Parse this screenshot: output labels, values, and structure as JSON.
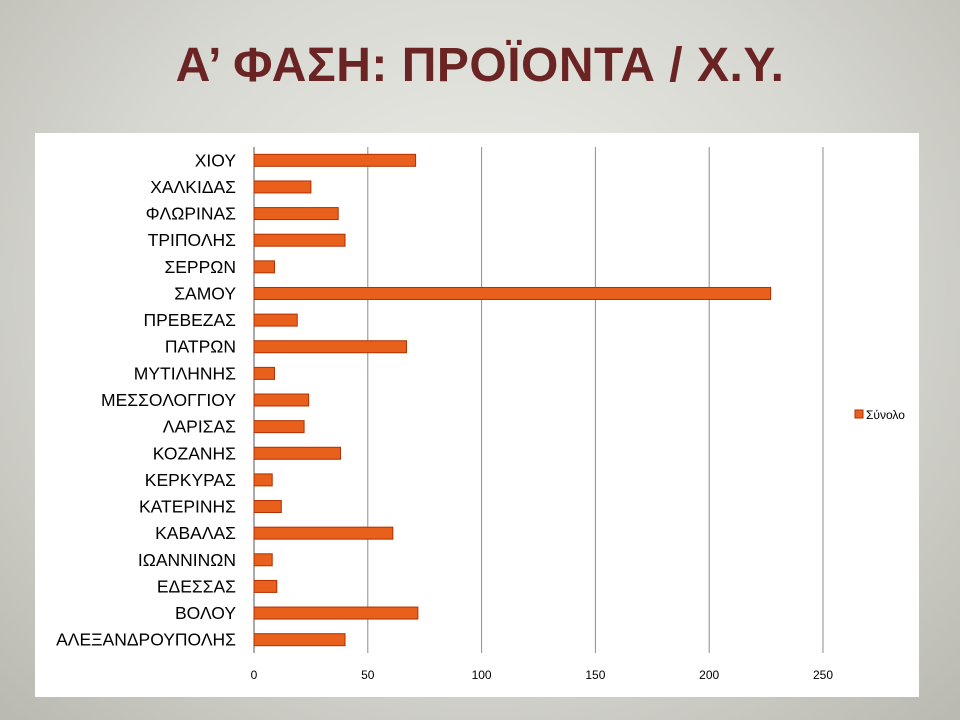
{
  "slide": {
    "title": "Α’ ΦΑΣΗ: ΠΡΟΪΟΝΤΑ / Χ.Υ."
  },
  "chart_data": {
    "type": "bar",
    "orientation": "horizontal",
    "title": "",
    "xlabel": "",
    "ylabel": "",
    "categories": [
      "ΧΙΟΥ",
      "ΧΑΛΚΙΔΑΣ",
      "ΦΛΩΡΙΝΑΣ",
      "ΤΡΙΠΟΛΗΣ",
      "ΣΕΡΡΩΝ",
      "ΣΑΜΟΥ",
      "ΠΡΕΒΕΖΑΣ",
      "ΠΑΤΡΩΝ",
      "ΜΥΤΙΛΗΝΗΣ",
      "ΜΕΣΣΟΛΟΓΓΙΟΥ",
      "ΛΑΡΙΣΑΣ",
      "ΚΟΖΑΝΗΣ",
      "ΚΕΡΚΥΡΑΣ",
      "ΚΑΤΕΡΙΝΗΣ",
      "ΚΑΒΑΛΑΣ",
      "ΙΩΑΝΝΙΝΩΝ",
      "ΕΔΕΣΣΑΣ",
      "ΒΟΛΟΥ",
      "ΑΛΕΞΑΝΔΡΟΥΠΟΛΗΣ"
    ],
    "series": [
      {
        "name": "Σύνολο",
        "color": "#e8601c",
        "edge_color": "#b23000",
        "values": [
          71,
          25,
          37,
          40,
          9,
          227,
          19,
          67,
          9,
          24,
          22,
          38,
          8,
          12,
          61,
          8,
          10,
          72,
          40
        ]
      }
    ],
    "xlim": [
      0,
      250
    ],
    "xticks": [
      0,
      50,
      100,
      150,
      200,
      250
    ],
    "grid": "vertical",
    "legend": "right"
  }
}
